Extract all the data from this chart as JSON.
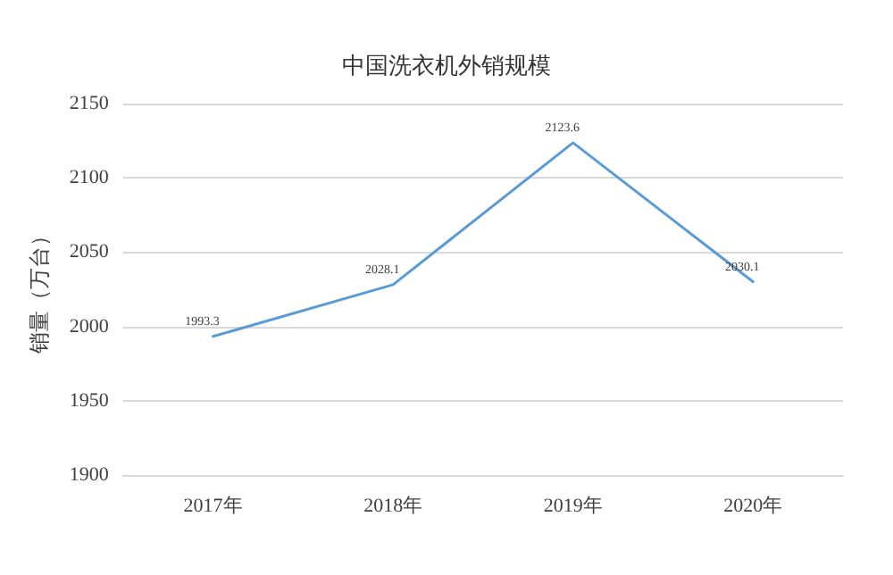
{
  "chart_data": {
    "type": "line",
    "title": "中国洗衣机外销规模",
    "ylabel": "销量（万台）",
    "categories": [
      "2017年",
      "2018年",
      "2019年",
      "2020年"
    ],
    "series": [
      {
        "color": "#5b9bd5",
        "values": [
          1993.3,
          2028.1,
          2123.6,
          2030.1
        ]
      }
    ],
    "ylim": [
      1900,
      2150
    ],
    "yticks": [
      1900,
      1950,
      2000,
      2050,
      2100,
      2150
    ],
    "grid": "y",
    "data_labels": true,
    "marker": "none",
    "line_style": "solid"
  }
}
